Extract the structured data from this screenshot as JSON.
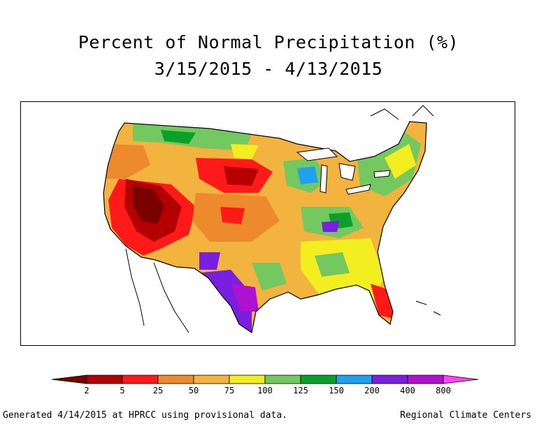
{
  "title_line1": "Percent of Normal Precipitation (%)",
  "title_line2": "3/15/2015 - 4/13/2015",
  "legend": {
    "tick_labels": [
      "2",
      "5",
      "25",
      "50",
      "75",
      "100",
      "125",
      "150",
      "200",
      "400",
      "800"
    ],
    "colors": [
      "#7a0000",
      "#b40000",
      "#ff1a1a",
      "#ee8a2e",
      "#f2b43e",
      "#f2ee20",
      "#74c860",
      "#0aa02a",
      "#20a0f0",
      "#7a1ee0",
      "#b010d0",
      "#ff40ff"
    ]
  },
  "footer": {
    "generated": "Generated 4/14/2015 at HPRCC using provisional data.",
    "source": "Regional Climate Centers"
  }
}
